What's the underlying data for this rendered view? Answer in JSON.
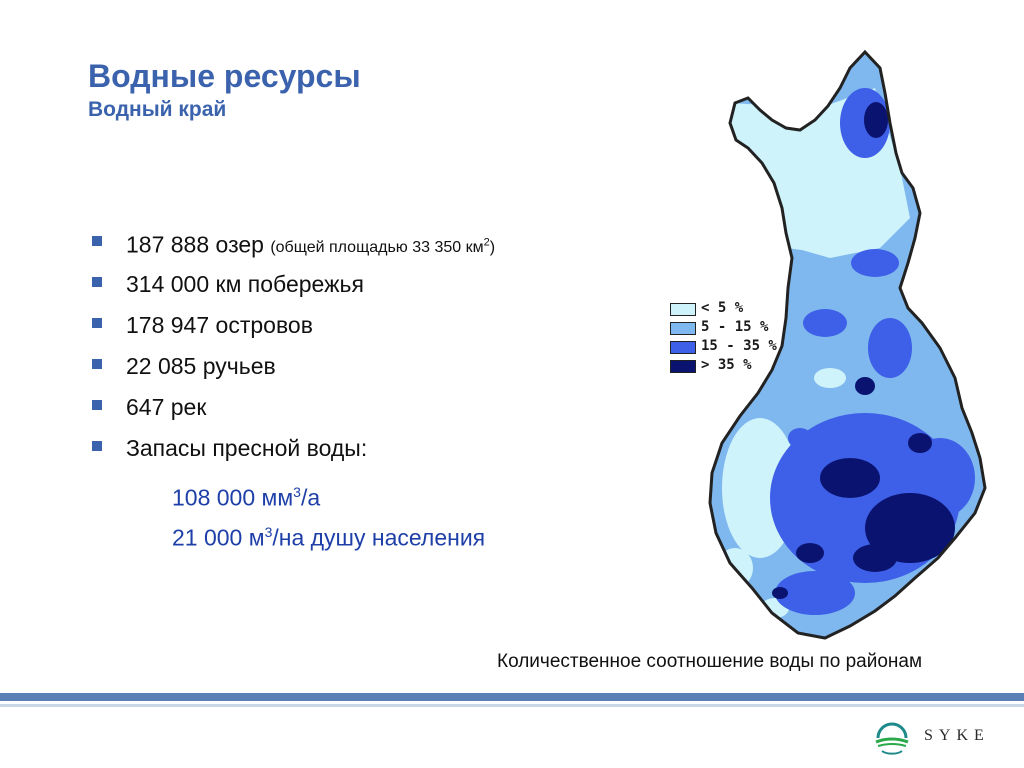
{
  "header": {
    "title": "Водные ресурсы",
    "subtitle": "Водный край"
  },
  "bullets": [
    {
      "main": "187 888 озер",
      "note_pre": "(общей площадью 33 350 км",
      "note_sup": "2",
      "note_post": ")"
    },
    {
      "main": "314 000 км побережья"
    },
    {
      "main": "178 947 островов"
    },
    {
      "main": "22 085 ручьев"
    },
    {
      "main": "647 рек"
    },
    {
      "main": "Запасы пресной воды:"
    }
  ],
  "sub_lines": [
    {
      "pre": "108 000 мм",
      "sup": "3",
      "post": "/a"
    },
    {
      "pre": "21 000 м",
      "sup": "3",
      "post": "/на душу населения"
    }
  ],
  "legend": [
    {
      "label": "< 5 %",
      "color": "#CFF3FB"
    },
    {
      "label": "5 - 15 %",
      "color": "#7FB8EE"
    },
    {
      "label": "15 - 35 %",
      "color": "#3E5FE8"
    },
    {
      "label": "> 35 %",
      "color": "#0A1470"
    }
  ],
  "map": {
    "outline_color": "#222222"
  },
  "caption": "Количественное соотношение воды по районам",
  "footer": {
    "logo_text": "SYKE",
    "bar_color": "#5A7FB4"
  }
}
